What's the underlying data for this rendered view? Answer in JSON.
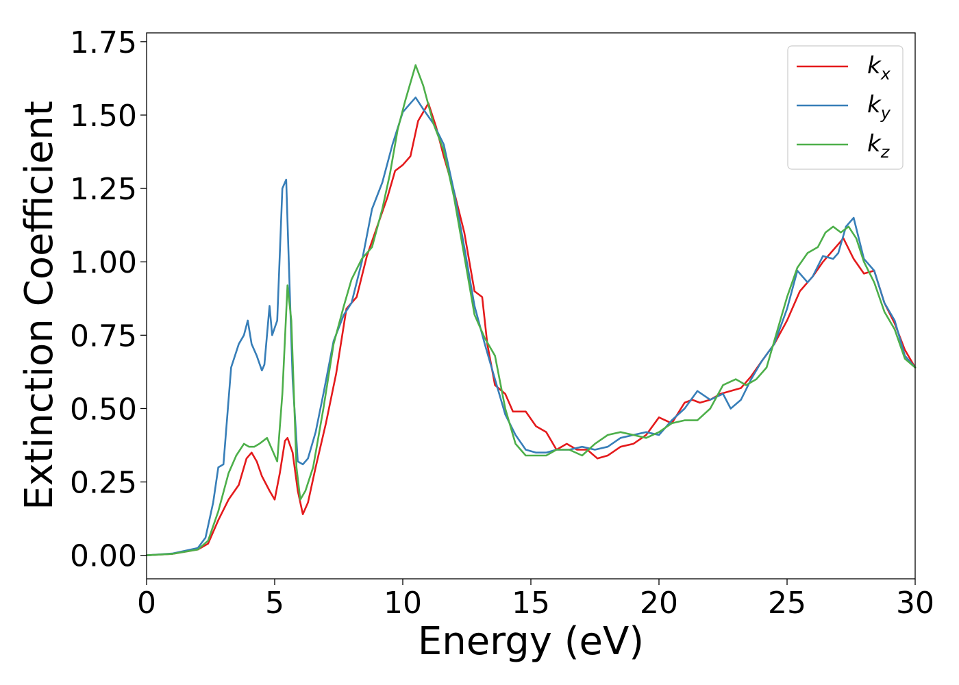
{
  "chart_data": {
    "type": "line",
    "title": "",
    "xlabel": "Energy (eV)",
    "ylabel": "Extinction Coefficient",
    "xlim": [
      0,
      30
    ],
    "ylim": [
      -0.08,
      1.78
    ],
    "xticks": [
      0,
      5,
      10,
      15,
      20,
      25,
      30
    ],
    "xtick_labels": [
      "0",
      "5",
      "10",
      "15",
      "20",
      "25",
      "30"
    ],
    "yticks": [
      0,
      0.25,
      0.5,
      0.75,
      1.0,
      1.25,
      1.5,
      1.75
    ],
    "ytick_labels": [
      "0.00",
      "0.25",
      "0.50",
      "0.75",
      "1.00",
      "1.25",
      "1.50",
      "1.75"
    ],
    "grid": false,
    "legend_position": "top-right",
    "series": [
      {
        "name": "k_x",
        "label_main": "k",
        "label_sub": "x",
        "color": "#e41a1c",
        "x": [
          0,
          1,
          2,
          2.4,
          2.8,
          3.2,
          3.6,
          3.9,
          4.1,
          4.3,
          4.5,
          4.8,
          5.0,
          5.2,
          5.4,
          5.5,
          5.7,
          5.9,
          6.1,
          6.3,
          6.6,
          7.0,
          7.4,
          7.8,
          8.2,
          8.6,
          9.0,
          9.4,
          9.7,
          10.0,
          10.3,
          10.6,
          11.0,
          11.3,
          11.6,
          12.0,
          12.4,
          12.8,
          13.1,
          13.3,
          13.6,
          14.0,
          14.3,
          14.8,
          15.2,
          15.6,
          16.0,
          16.4,
          16.8,
          17.2,
          17.6,
          18.0,
          18.5,
          19.0,
          19.5,
          20.0,
          20.5,
          21.0,
          21.3,
          21.6,
          22.0,
          22.4,
          22.8,
          23.2,
          23.6,
          24.0,
          24.5,
          25.0,
          25.5,
          26.0,
          26.4,
          26.8,
          27.2,
          27.6,
          28.0,
          28.4,
          28.8,
          29.2,
          29.6,
          30.0
        ],
        "values": [
          0,
          0.005,
          0.02,
          0.04,
          0.12,
          0.19,
          0.24,
          0.33,
          0.35,
          0.32,
          0.27,
          0.22,
          0.19,
          0.28,
          0.39,
          0.4,
          0.35,
          0.22,
          0.14,
          0.18,
          0.3,
          0.45,
          0.62,
          0.84,
          0.88,
          1.02,
          1.12,
          1.22,
          1.31,
          1.33,
          1.36,
          1.48,
          1.54,
          1.46,
          1.36,
          1.24,
          1.1,
          0.9,
          0.88,
          0.72,
          0.58,
          0.55,
          0.49,
          0.49,
          0.44,
          0.42,
          0.36,
          0.38,
          0.36,
          0.36,
          0.33,
          0.34,
          0.37,
          0.38,
          0.41,
          0.47,
          0.45,
          0.52,
          0.53,
          0.52,
          0.53,
          0.55,
          0.56,
          0.57,
          0.61,
          0.66,
          0.72,
          0.8,
          0.9,
          0.95,
          1.0,
          1.04,
          1.08,
          1.01,
          0.96,
          0.97,
          0.86,
          0.79,
          0.7,
          0.64
        ]
      },
      {
        "name": "k_y",
        "label_main": "k",
        "label_sub": "y",
        "color": "#377eb8",
        "x": [
          0,
          1,
          2,
          2.3,
          2.6,
          2.8,
          3.0,
          3.3,
          3.6,
          3.8,
          3.95,
          4.1,
          4.3,
          4.5,
          4.6,
          4.8,
          4.9,
          5.1,
          5.3,
          5.45,
          5.55,
          5.7,
          5.9,
          6.1,
          6.3,
          6.6,
          6.9,
          7.3,
          7.7,
          8.0,
          8.4,
          8.8,
          9.2,
          9.6,
          10.0,
          10.3,
          10.5,
          10.8,
          11.2,
          11.6,
          12.0,
          12.4,
          12.8,
          13.2,
          13.6,
          14.0,
          14.4,
          14.8,
          15.2,
          15.6,
          16.0,
          16.5,
          17.0,
          17.5,
          18.0,
          18.5,
          19.0,
          19.5,
          20.0,
          20.5,
          21.0,
          21.5,
          22.0,
          22.5,
          22.8,
          23.2,
          23.6,
          24.0,
          24.5,
          25.0,
          25.4,
          25.8,
          26.0,
          26.4,
          26.8,
          27.0,
          27.3,
          27.6,
          28.0,
          28.4,
          28.8,
          29.2,
          29.6,
          30.0
        ],
        "values": [
          0,
          0.006,
          0.025,
          0.06,
          0.18,
          0.3,
          0.31,
          0.64,
          0.72,
          0.75,
          0.8,
          0.72,
          0.68,
          0.63,
          0.65,
          0.85,
          0.75,
          0.8,
          1.25,
          1.28,
          1.0,
          0.6,
          0.32,
          0.31,
          0.33,
          0.42,
          0.55,
          0.73,
          0.82,
          0.86,
          1.0,
          1.18,
          1.27,
          1.4,
          1.51,
          1.54,
          1.56,
          1.52,
          1.47,
          1.4,
          1.24,
          1.05,
          0.85,
          0.72,
          0.6,
          0.48,
          0.41,
          0.36,
          0.35,
          0.35,
          0.36,
          0.36,
          0.37,
          0.36,
          0.37,
          0.4,
          0.41,
          0.42,
          0.41,
          0.46,
          0.5,
          0.56,
          0.53,
          0.55,
          0.5,
          0.53,
          0.6,
          0.66,
          0.72,
          0.84,
          0.97,
          0.93,
          0.95,
          1.02,
          1.01,
          1.03,
          1.12,
          1.15,
          1.01,
          0.97,
          0.86,
          0.8,
          0.68,
          0.64
        ]
      },
      {
        "name": "k_z",
        "label_main": "k",
        "label_sub": "z",
        "color": "#4daf4a",
        "x": [
          0,
          1,
          2,
          2.4,
          2.8,
          3.2,
          3.5,
          3.8,
          4.0,
          4.2,
          4.4,
          4.7,
          4.9,
          5.1,
          5.3,
          5.5,
          5.65,
          5.85,
          6.0,
          6.2,
          6.5,
          6.9,
          7.3,
          7.7,
          8.0,
          8.4,
          8.8,
          9.2,
          9.5,
          9.8,
          10.1,
          10.5,
          10.8,
          11.2,
          11.6,
          12.0,
          12.4,
          12.8,
          13.2,
          13.6,
          14.0,
          14.4,
          14.8,
          15.2,
          15.6,
          16.0,
          16.5,
          17.0,
          17.5,
          18.0,
          18.5,
          19.0,
          19.5,
          20.0,
          20.5,
          21.0,
          21.5,
          22.0,
          22.5,
          23.0,
          23.4,
          23.8,
          24.2,
          24.6,
          25.0,
          25.4,
          25.8,
          26.2,
          26.5,
          26.8,
          27.1,
          27.4,
          27.7,
          28.0,
          28.4,
          28.8,
          29.2,
          29.6,
          30.0
        ],
        "values": [
          0,
          0.005,
          0.02,
          0.05,
          0.15,
          0.28,
          0.34,
          0.38,
          0.37,
          0.37,
          0.38,
          0.4,
          0.36,
          0.32,
          0.55,
          0.92,
          0.8,
          0.3,
          0.19,
          0.22,
          0.3,
          0.5,
          0.72,
          0.85,
          0.94,
          1.01,
          1.05,
          1.18,
          1.3,
          1.45,
          1.55,
          1.67,
          1.6,
          1.47,
          1.38,
          1.22,
          1.02,
          0.82,
          0.74,
          0.68,
          0.5,
          0.38,
          0.34,
          0.34,
          0.34,
          0.36,
          0.36,
          0.34,
          0.38,
          0.41,
          0.42,
          0.41,
          0.4,
          0.42,
          0.45,
          0.46,
          0.46,
          0.5,
          0.58,
          0.6,
          0.58,
          0.6,
          0.64,
          0.76,
          0.88,
          0.98,
          1.03,
          1.05,
          1.1,
          1.12,
          1.1,
          1.12,
          1.08,
          1.0,
          0.93,
          0.83,
          0.77,
          0.67,
          0.64
        ]
      }
    ]
  }
}
